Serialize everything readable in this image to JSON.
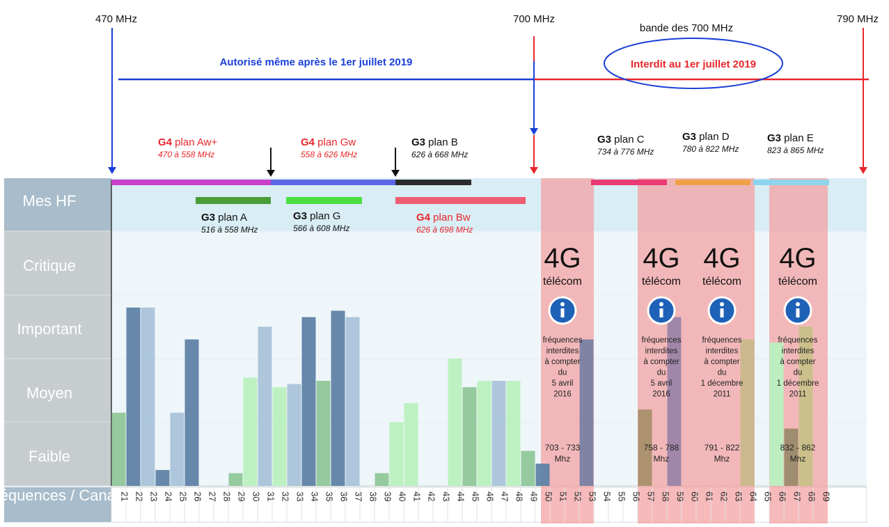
{
  "frequency_markers": [
    {
      "label": "470 MHz",
      "x": 167
    },
    {
      "label": "700 MHz",
      "x": 767
    },
    {
      "label": "790 MHz",
      "x": 1232
    }
  ],
  "band_label": "bande des 700 MHz",
  "zones": {
    "authorized": "Autorisé même après le 1er juillet 2019",
    "forbidden": "Interdit au 1er juillet 2019"
  },
  "colors": {
    "authorized": "#1a3fd6",
    "forbidden": "#e8262a",
    "bar_dark": "#5f82a5",
    "bar_light": "#a9c3d9",
    "bar_green": "#b9f0bf",
    "bar_green_dark": "#8fc79a",
    "sidebar": "#a8bccb",
    "forbidden_band": "#f4a0a0"
  },
  "top_plans": [
    {
      "prefix": "G4",
      "name": "plan Aw+",
      "range": "470 à 558 MHz",
      "color": "#e8262a"
    },
    {
      "prefix": "G4",
      "name": "plan Gw",
      "range": "558 à 626 MHz",
      "color": "#e8262a"
    },
    {
      "prefix": "G3",
      "name": "plan  B",
      "range": "626 à 668 MHz",
      "color": "#111111"
    },
    {
      "prefix": "G3",
      "name": "plan C",
      "range": "734 à 776 MHz",
      "color": "#111111"
    },
    {
      "prefix": "G3",
      "name": "plan D",
      "range": "780 à 822 MHz",
      "color": "#111111"
    },
    {
      "prefix": "G3",
      "name": "plan E",
      "range": "823 à 865 MHz",
      "color": "#111111"
    }
  ],
  "bottom_plans": [
    {
      "prefix": "G3",
      "name": "plan A",
      "range": "516 à 558 MHz",
      "color": "#111111"
    },
    {
      "prefix": "G3",
      "name": "plan G",
      "range": "566 à 608 MHz",
      "color": "#111111"
    },
    {
      "prefix": "G4",
      "name": "plan Bw",
      "range": "626 à 698 MHz",
      "color": "#e8262a"
    }
  ],
  "sidebar": {
    "levels": [
      "Mes HF",
      "Critique",
      "Important",
      "Moyen",
      "Faible"
    ],
    "axis_label": "Fréquences / Canaux"
  },
  "forbidden_blocks": [
    {
      "title": "4G",
      "subtitle": "télécom",
      "note": [
        "fréquences",
        "interdites",
        "à compter",
        "du",
        "5 avril",
        "2016"
      ],
      "range": "703 - 733",
      "unit": "Mhz"
    },
    {
      "title": "4G",
      "subtitle": "télécom",
      "note": [
        "fréquences",
        "interdites",
        "à compter",
        "du",
        "5 avril",
        "2016"
      ],
      "range": "758 - 788",
      "unit": "Mhz"
    },
    {
      "title": "4G",
      "subtitle": "télécom",
      "note": [
        "fréquences",
        "interdites",
        "à compter",
        "du",
        "1 décembre",
        "2011"
      ],
      "range": "791 - 822",
      "unit": "Mhz"
    },
    {
      "title": "4G",
      "subtitle": "télécom",
      "note": [
        "fréquences",
        "interdites",
        "à compter",
        "du",
        "1 décembre",
        "2011"
      ],
      "range": "832 - 862",
      "unit": "Mhz"
    }
  ],
  "chart_data": {
    "type": "bar",
    "xlabel": "Fréquences / Canaux",
    "ylabel": "",
    "y_levels": [
      "Faible",
      "Moyen",
      "Important",
      "Critique"
    ],
    "ylim": [
      0,
      4
    ],
    "categories": [
      "21",
      "22",
      "23",
      "24",
      "25",
      "26",
      "27",
      "28",
      "29",
      "30",
      "31",
      "32",
      "33",
      "34",
      "35",
      "36",
      "37",
      "38",
      "39",
      "40",
      "41",
      "42",
      "43",
      "44",
      "45",
      "46",
      "47",
      "48",
      "49",
      "50",
      "51",
      "52",
      "53",
      "54",
      "55",
      "56",
      "57",
      "58",
      "59",
      "60",
      "61",
      "62",
      "63",
      "64",
      "65",
      "66",
      "67",
      "68",
      "69"
    ],
    "values": [
      1.15,
      2.8,
      2.8,
      0.25,
      1.15,
      2.3,
      0,
      0,
      0.2,
      1.7,
      2.5,
      1.55,
      1.6,
      2.65,
      1.65,
      2.75,
      2.65,
      0,
      0.2,
      1.0,
      1.3,
      0,
      0,
      2.0,
      1.55,
      1.65,
      1.65,
      1.65,
      0.55,
      0.35,
      0,
      0,
      2.3,
      0,
      0,
      0,
      1.2,
      0,
      2.65,
      0,
      0,
      0,
      0,
      2.3,
      0,
      2.25,
      0.9,
      2.5,
      0
    ],
    "bar_colors": [
      "#8fc79a",
      "#5f82a5",
      "#a9c3d9",
      "#5f82a5",
      "#a9c3d9",
      "#5f82a5",
      "",
      "",
      "#8fc79a",
      "#b9f0bf",
      "#a9c3d9",
      "#b9f0bf",
      "#a9c3d9",
      "#5f82a5",
      "#8fc79a",
      "#5f82a5",
      "#a9c3d9",
      "",
      "#8fc79a",
      "#b9f0bf",
      "#b9f0bf",
      "",
      "",
      "#b9f0bf",
      "#8fc79a",
      "#b9f0bf",
      "#a9c3d9",
      "#b9f0bf",
      "#8fc79a",
      "#5f82a5",
      "",
      "",
      "#7a7fa2",
      "",
      "",
      "",
      "#a88f6a",
      "",
      "#9b84a8",
      "",
      "",
      "",
      "",
      "#c8b88a",
      "",
      "#b9f0bf",
      "#9a8a6a",
      "#c8c088",
      ""
    ],
    "forbidden_channels": [
      [
        50,
        53
      ],
      [
        57,
        60
      ],
      [
        61,
        64
      ],
      [
        66,
        69
      ]
    ]
  }
}
